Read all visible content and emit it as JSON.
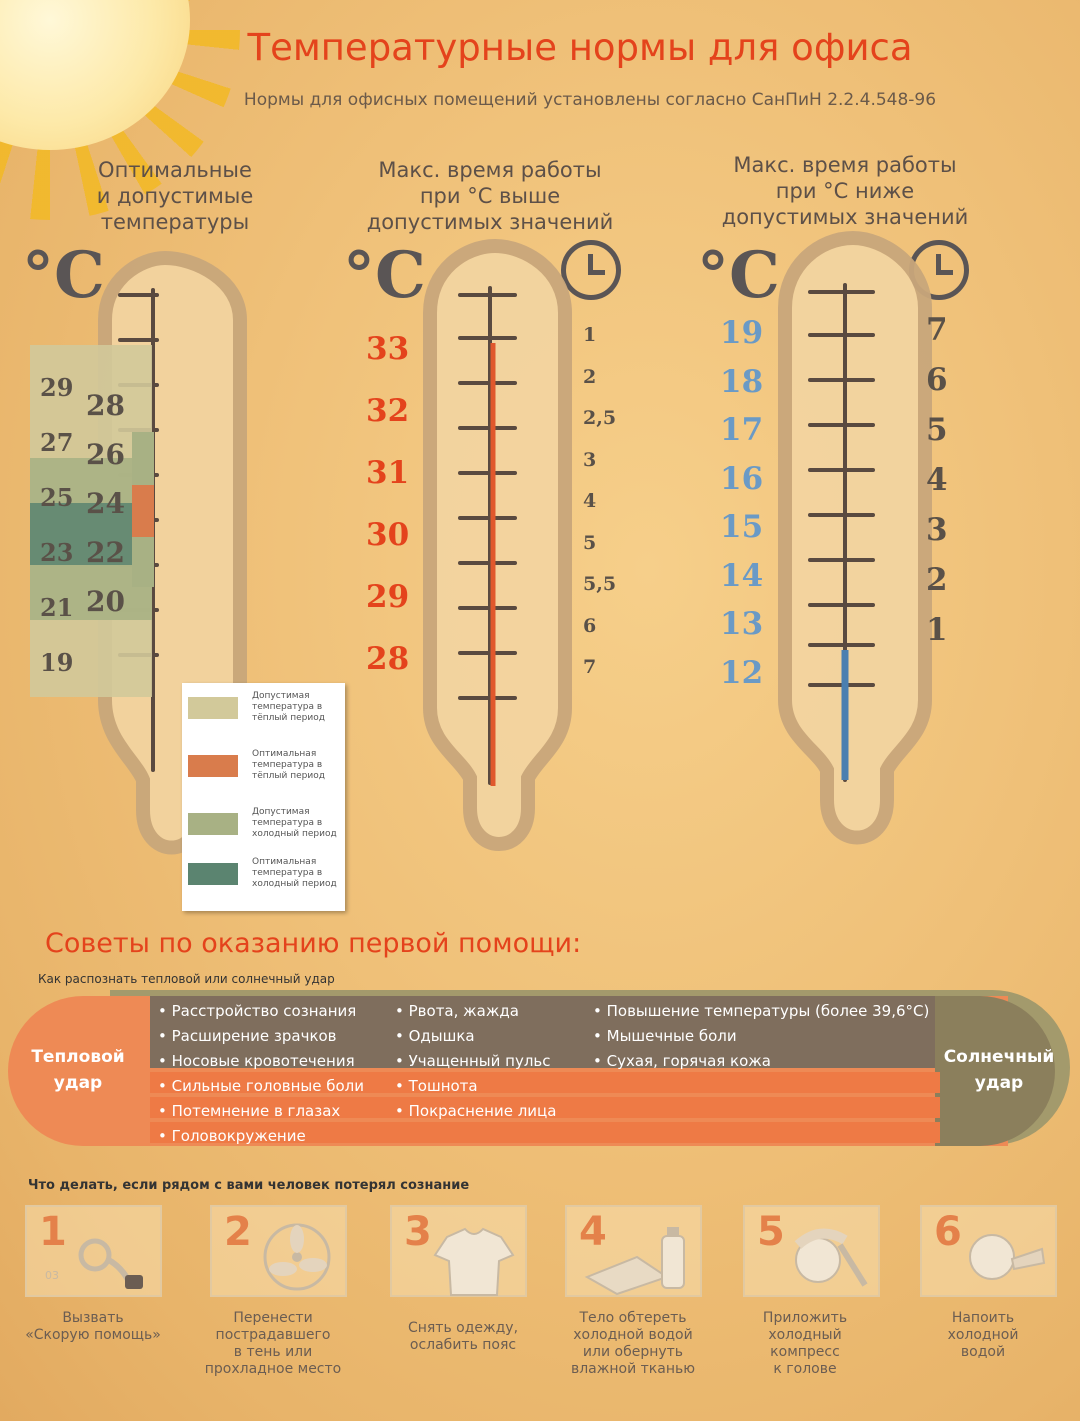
{
  "title": "Температурные нормы для офиса",
  "subtitle": "Нормы для офисных помещений установлены согласно СанПиН 2.2.4.548-96",
  "columns": {
    "c1_head": [
      "Оптимальные",
      "и допустимые",
      "температуры"
    ],
    "c2_head": [
      "Макс. время работы",
      "при °С  выше",
      "допустимых значений"
    ],
    "c3_head": [
      "Макс. время работы",
      "при °С  ниже",
      "допустимых значений"
    ]
  },
  "celsius": "°С",
  "optimal_left": [
    "29",
    "27",
    "25",
    "23",
    "21",
    "19"
  ],
  "optimal_right": [
    "28",
    "26",
    "24",
    "22",
    "20"
  ],
  "high_temps": [
    "33",
    "32",
    "31",
    "30",
    "29",
    "28"
  ],
  "high_hours": [
    "1",
    "2",
    "2,5",
    "3",
    "4",
    "5",
    "5,5",
    "6",
    "7"
  ],
  "low_temps": [
    "19",
    "18",
    "17",
    "16",
    "15",
    "14",
    "13",
    "12"
  ],
  "low_hours": [
    "7",
    "6",
    "5",
    "4",
    "3",
    "2",
    "1"
  ],
  "legend": [
    {
      "text": "Допустимая температура в тёплый период",
      "color": "#d2c99a"
    },
    {
      "text": "Оптимальная температура в тёплый период",
      "color": "#d97c4c"
    },
    {
      "text": "Допустимая температура в холодный период",
      "color": "#a8b184"
    },
    {
      "text": "Оптимальная температура в холодный период",
      "color": "#5b8470"
    }
  ],
  "first_aid": {
    "title": "Советы по оказанию первой помощи:",
    "subtitle": "Как распознать тепловой или солнечный удар",
    "heat_label": [
      "Тепловой",
      "удар"
    ],
    "sun_label": [
      "Солнечный",
      "удар"
    ],
    "rows": [
      [
        "Расстройство сознания",
        "Рвота, жажда",
        "Повышение температуры (более 39,6°С)"
      ],
      [
        "Расширение зрачков",
        "Одышка",
        "Мышечные боли"
      ],
      [
        "Носовые кровотечения",
        "Учащенный пульс",
        "Сухая, горячая кожа"
      ],
      [
        "Сильные головные боли",
        "Тошнота",
        ""
      ],
      [
        "Потемнение в глазах",
        "Покраснение лица",
        ""
      ],
      [
        "Головокружение",
        "",
        ""
      ]
    ]
  },
  "unconscious": {
    "title": "Что делать, если рядом с вами человек потерял сознание",
    "phone_digits": "03",
    "steps": [
      {
        "n": "1",
        "icon": "phone-icon",
        "caption": [
          "Вызвать",
          "«Скорую помощь»"
        ]
      },
      {
        "n": "2",
        "icon": "fan-icon",
        "caption": [
          "Перенести",
          "пострадавшего",
          "в тень или",
          "прохладное место"
        ]
      },
      {
        "n": "3",
        "icon": "shirt-icon",
        "caption": [
          "Снять одежду,",
          "ослабить пояс"
        ]
      },
      {
        "n": "4",
        "icon": "towel-bottle-icon",
        "caption": [
          "Тело обтереть",
          "холодной водой",
          "или обернуть",
          "влажной тканью"
        ]
      },
      {
        "n": "5",
        "icon": "compress-icon",
        "caption": [
          "Приложить",
          "холодный",
          "компресс",
          "к голове"
        ]
      },
      {
        "n": "6",
        "icon": "drinking-icon",
        "caption": [
          "Напоить",
          "холодной",
          "водой"
        ]
      }
    ]
  }
}
